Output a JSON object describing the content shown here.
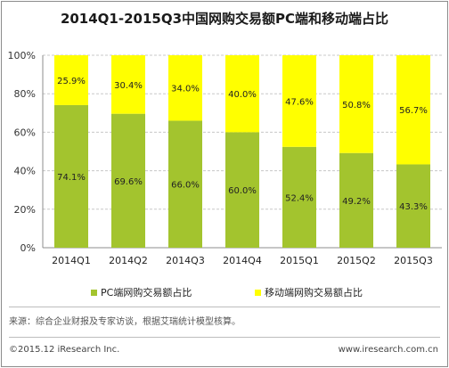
{
  "chart_data": {
    "type": "bar",
    "stacked": true,
    "title": "2014Q1-2015Q3中国网购交易额PC端和移动端占比",
    "categories": [
      "2014Q1",
      "2014Q2",
      "2014Q3",
      "2014Q4",
      "2015Q1",
      "2015Q2",
      "2015Q3"
    ],
    "series": [
      {
        "name": "PC端网购交易额占比",
        "color": "#a3c42e",
        "values": [
          74.1,
          69.6,
          66.0,
          60.0,
          52.4,
          49.2,
          43.3
        ],
        "labels": [
          "74.1%",
          "69.6%",
          "66.0%",
          "60.0%",
          "52.4%",
          "49.2%",
          "43.3%"
        ]
      },
      {
        "name": "移动端网购交易额占比",
        "color": "#ffff00",
        "values": [
          25.9,
          30.4,
          34.0,
          40.0,
          47.6,
          50.8,
          56.7
        ],
        "labels": [
          "25.9%",
          "30.4%",
          "34.0%",
          "40.0%",
          "47.6%",
          "50.8%",
          "56.7%"
        ]
      }
    ],
    "ylim": [
      0,
      100
    ],
    "yticks": [
      0,
      20,
      40,
      60,
      80,
      100
    ],
    "ytick_labels": [
      "0%",
      "20%",
      "40%",
      "60%",
      "80%",
      "100%"
    ],
    "grid": true,
    "legend": "bottom"
  },
  "source": "来源：综合企业财报及专家访谈，根据艾瑞统计模型核算。",
  "copyright": "©2015.12 iResearch Inc.",
  "website": "www.iresearch.com.cn"
}
